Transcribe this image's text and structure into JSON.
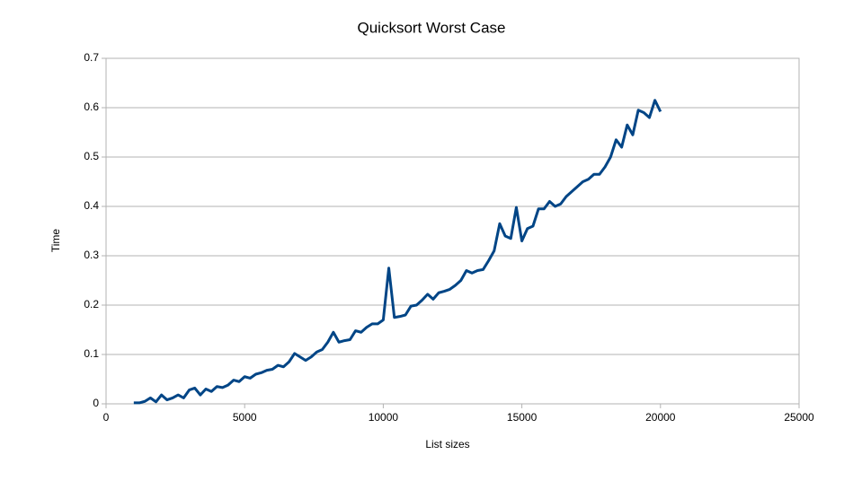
{
  "chart_data": {
    "type": "line",
    "title": "Quicksort Worst Case",
    "x_label": "List sizes",
    "y_label": "Time",
    "x": [
      1000,
      1200,
      1400,
      1600,
      1800,
      2000,
      2200,
      2400,
      2600,
      2800,
      3000,
      3200,
      3400,
      3600,
      3800,
      4000,
      4200,
      4400,
      4600,
      4800,
      5000,
      5200,
      5400,
      5600,
      5800,
      6000,
      6200,
      6400,
      6600,
      6800,
      7000,
      7200,
      7400,
      7600,
      7800,
      8000,
      8200,
      8400,
      8600,
      8800,
      9000,
      9200,
      9400,
      9600,
      9800,
      10000,
      10200,
      10400,
      10600,
      10800,
      11000,
      11200,
      11400,
      11600,
      11800,
      12000,
      12200,
      12400,
      12600,
      12800,
      13000,
      13200,
      13400,
      13600,
      13800,
      14000,
      14200,
      14400,
      14600,
      14800,
      15000,
      15200,
      15400,
      15600,
      15800,
      16000,
      16200,
      16400,
      16600,
      16800,
      17000,
      17200,
      17400,
      17600,
      17800,
      18000,
      18200,
      18400,
      18600,
      18800,
      19000,
      19200,
      19400,
      19600,
      19800,
      20000
    ],
    "series": [
      {
        "name": "Time",
        "color": "#004586",
        "values": [
          0.002,
          0.002,
          0.005,
          0.012,
          0.004,
          0.018,
          0.008,
          0.012,
          0.018,
          0.012,
          0.028,
          0.032,
          0.018,
          0.03,
          0.025,
          0.035,
          0.033,
          0.038,
          0.048,
          0.045,
          0.055,
          0.052,
          0.06,
          0.063,
          0.068,
          0.07,
          0.078,
          0.075,
          0.085,
          0.102,
          0.095,
          0.088,
          0.095,
          0.105,
          0.11,
          0.125,
          0.145,
          0.125,
          0.128,
          0.13,
          0.148,
          0.145,
          0.155,
          0.162,
          0.162,
          0.17,
          0.275,
          0.175,
          0.177,
          0.18,
          0.198,
          0.2,
          0.21,
          0.222,
          0.212,
          0.225,
          0.228,
          0.232,
          0.24,
          0.25,
          0.27,
          0.265,
          0.27,
          0.272,
          0.29,
          0.31,
          0.365,
          0.34,
          0.335,
          0.398,
          0.33,
          0.355,
          0.36,
          0.395,
          0.395,
          0.41,
          0.4,
          0.405,
          0.42,
          0.43,
          0.44,
          0.45,
          0.455,
          0.465,
          0.465,
          0.48,
          0.5,
          0.535,
          0.52,
          0.565,
          0.545,
          0.595,
          0.59,
          0.58,
          0.615,
          0.592
        ]
      }
    ],
    "xlim": [
      0,
      25000
    ],
    "xticks": [
      0,
      5000,
      10000,
      15000,
      20000,
      25000
    ],
    "ylim": [
      0,
      0.7
    ],
    "yticks": [
      0,
      0.1,
      0.2,
      0.3,
      0.4,
      0.5,
      0.6,
      0.7
    ],
    "grid": true
  }
}
